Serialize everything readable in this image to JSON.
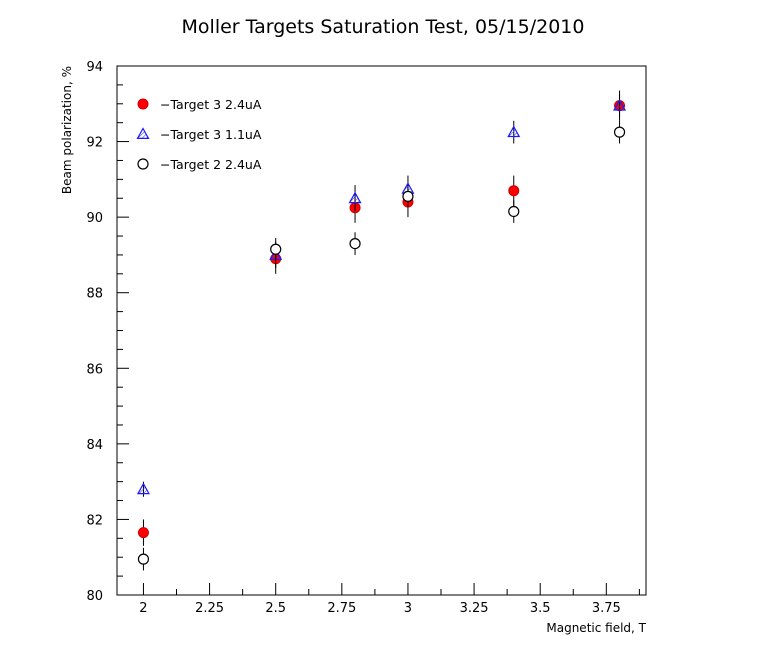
{
  "chart_data": {
    "type": "scatter",
    "title": "Moller Targets Saturation Test, 05/15/2010",
    "xlabel": "Magnetic field, T",
    "ylabel": "Beam polarization, %",
    "xlim": [
      1.9,
      3.9
    ],
    "ylim": [
      80,
      94
    ],
    "xticks": [
      2,
      2.25,
      2.5,
      2.75,
      3,
      3.25,
      3.5,
      3.75
    ],
    "xtick_labels": [
      "2",
      "2.25",
      "2.5",
      "2.75",
      "3",
      "3.25",
      "3.5",
      "3.75"
    ],
    "yticks": [
      80,
      82,
      84,
      86,
      88,
      90,
      92,
      94
    ],
    "ytick_labels": [
      "80",
      "82",
      "84",
      "86",
      "88",
      "90",
      "92",
      "94"
    ],
    "grid": false,
    "legend_position": "top-left",
    "series": [
      {
        "name": "Target 3 2.4uA",
        "marker": "filled-circle",
        "color": "#ff0000",
        "x": [
          2.0,
          2.5,
          2.8,
          3.0,
          3.4,
          3.8
        ],
        "y": [
          81.65,
          88.9,
          90.25,
          90.4,
          90.7,
          92.95
        ],
        "yerr": [
          0.35,
          0.4,
          0.4,
          0.4,
          0.4,
          0.4
        ]
      },
      {
        "name": "Target 3 1.1uA",
        "marker": "open-triangle-hatched",
        "color": "#1a1aff",
        "x": [
          2.0,
          2.5,
          2.8,
          3.0,
          3.4,
          3.8
        ],
        "y": [
          82.8,
          89.0,
          90.5,
          90.75,
          92.25,
          92.95
        ],
        "yerr": [
          0.2,
          0.35,
          0.35,
          0.35,
          0.3,
          0.3
        ]
      },
      {
        "name": "Target 2 2.4uA",
        "marker": "open-circle",
        "color": "#000000",
        "x": [
          2.0,
          2.5,
          2.8,
          3.0,
          3.4,
          3.8
        ],
        "y": [
          80.95,
          89.15,
          89.3,
          90.55,
          90.15,
          92.25
        ],
        "yerr": [
          0.3,
          0.3,
          0.3,
          0.3,
          0.3,
          0.3
        ]
      }
    ]
  }
}
